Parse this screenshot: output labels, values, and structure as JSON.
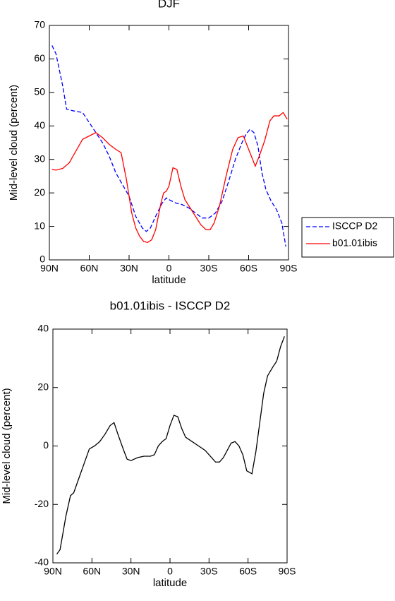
{
  "chart_data": [
    {
      "type": "line",
      "title": "DJF",
      "xlabel": "latitude",
      "ylabel": "Mid-level cloud (percent)",
      "xlim": [
        90,
        -90
      ],
      "xticks": [
        {
          "value": 90,
          "label": "90N"
        },
        {
          "value": 60,
          "label": "60N"
        },
        {
          "value": 30,
          "label": "30N"
        },
        0,
        {
          "value": -30,
          "label": "30S"
        },
        {
          "value": -60,
          "label": "60S"
        },
        {
          "value": -90,
          "label": "90S"
        }
      ],
      "ylim": [
        0,
        70
      ],
      "yticks": [
        0,
        10,
        20,
        30,
        40,
        50,
        60,
        70
      ],
      "legend": "right",
      "series": [
        {
          "name": "ISCCP D2",
          "color": "#0000ff",
          "line_style": "dashed",
          "x": [
            88,
            85,
            80,
            77,
            72,
            65,
            60,
            55,
            50,
            45,
            40,
            35,
            30,
            25,
            20,
            17,
            14,
            10,
            5,
            2,
            0,
            -5,
            -10,
            -15,
            -20,
            -25,
            -30,
            -35,
            -40,
            -45,
            -50,
            -55,
            -58,
            -61,
            -64,
            -67,
            -70,
            -73,
            -77,
            -81,
            -85,
            -88
          ],
          "values": [
            64,
            61.5,
            52,
            45,
            44.5,
            44,
            41,
            38,
            35,
            31,
            26,
            22.5,
            19,
            13,
            9.5,
            8.5,
            9.5,
            13,
            17,
            18.5,
            18,
            17,
            16.5,
            15.5,
            14,
            12.5,
            12.5,
            14,
            17.5,
            23.5,
            30,
            35,
            37.5,
            39,
            38,
            34,
            26,
            21,
            17.5,
            15,
            11,
            4
          ]
        },
        {
          "name": "b01.01ibis",
          "color": "#ff0000",
          "line_style": "solid",
          "x": [
            88,
            85,
            80,
            75,
            70,
            65,
            60,
            55,
            50,
            45,
            40,
            36,
            32,
            28,
            25,
            22,
            19,
            16,
            13,
            10,
            6,
            4,
            2,
            0,
            -3,
            -6,
            -9,
            -12,
            -16,
            -20,
            -24,
            -28,
            -31,
            -34,
            -38,
            -43,
            -48,
            -52,
            -56,
            -59,
            -62,
            -65,
            -68,
            -72,
            -76,
            -79,
            -83,
            -86,
            -89
          ],
          "values": [
            27,
            26.8,
            27.3,
            29,
            32.5,
            36,
            37,
            38,
            36.5,
            34.5,
            33,
            32,
            24,
            14,
            9.5,
            7,
            5.5,
            5.2,
            6,
            9,
            17,
            20,
            20.5,
            22,
            27.5,
            27,
            22,
            18,
            15.5,
            13,
            10.5,
            9,
            9,
            11,
            16,
            25,
            33,
            36.5,
            37,
            34,
            31,
            28,
            31,
            35.5,
            41.5,
            43,
            43,
            44,
            42
          ]
        }
      ]
    },
    {
      "type": "line",
      "title": "b01.01ibis - ISCCP D2",
      "xlabel": "latitude",
      "ylabel": "Mid-level cloud (percent)",
      "xlim": [
        90,
        -90
      ],
      "xticks": [
        {
          "value": 90,
          "label": "90N"
        },
        {
          "value": 60,
          "label": "60N"
        },
        {
          "value": 30,
          "label": "30N"
        },
        0,
        {
          "value": -30,
          "label": "30S"
        },
        {
          "value": -60,
          "label": "60S"
        },
        {
          "value": -90,
          "label": "90S"
        }
      ],
      "ylim": [
        -40,
        40
      ],
      "yticks": [
        -40,
        -20,
        0,
        20,
        40
      ],
      "series": [
        {
          "color": "#000000",
          "line_style": "solid",
          "x": [
            87,
            84.5,
            80,
            76.5,
            74,
            70,
            66,
            62,
            58,
            54,
            50,
            46,
            43,
            40,
            36,
            33,
            30,
            25,
            20,
            15,
            12,
            9,
            6,
            3,
            0,
            -3,
            -6,
            -9,
            -12,
            -17,
            -22,
            -27,
            -31,
            -35,
            -38,
            -41,
            -44,
            -47,
            -50,
            -53,
            -56,
            -59,
            -63,
            -66,
            -69,
            -72,
            -75,
            -79,
            -82,
            -85,
            -88
          ],
          "values": [
            -37,
            -35.5,
            -24,
            -17,
            -16,
            -11,
            -6,
            -1,
            0,
            1.5,
            4,
            7,
            8,
            4,
            -1,
            -4.5,
            -5,
            -4,
            -3.5,
            -3.5,
            -3,
            0,
            1.5,
            2.5,
            7,
            10.5,
            10,
            6,
            3,
            1.5,
            0,
            -1.5,
            -3.5,
            -5.5,
            -5.5,
            -4,
            -1.5,
            1,
            1.5,
            0,
            -3,
            -8.5,
            -9.5,
            -2,
            8,
            18,
            24,
            27,
            29,
            34,
            37.5
          ]
        }
      ]
    }
  ]
}
